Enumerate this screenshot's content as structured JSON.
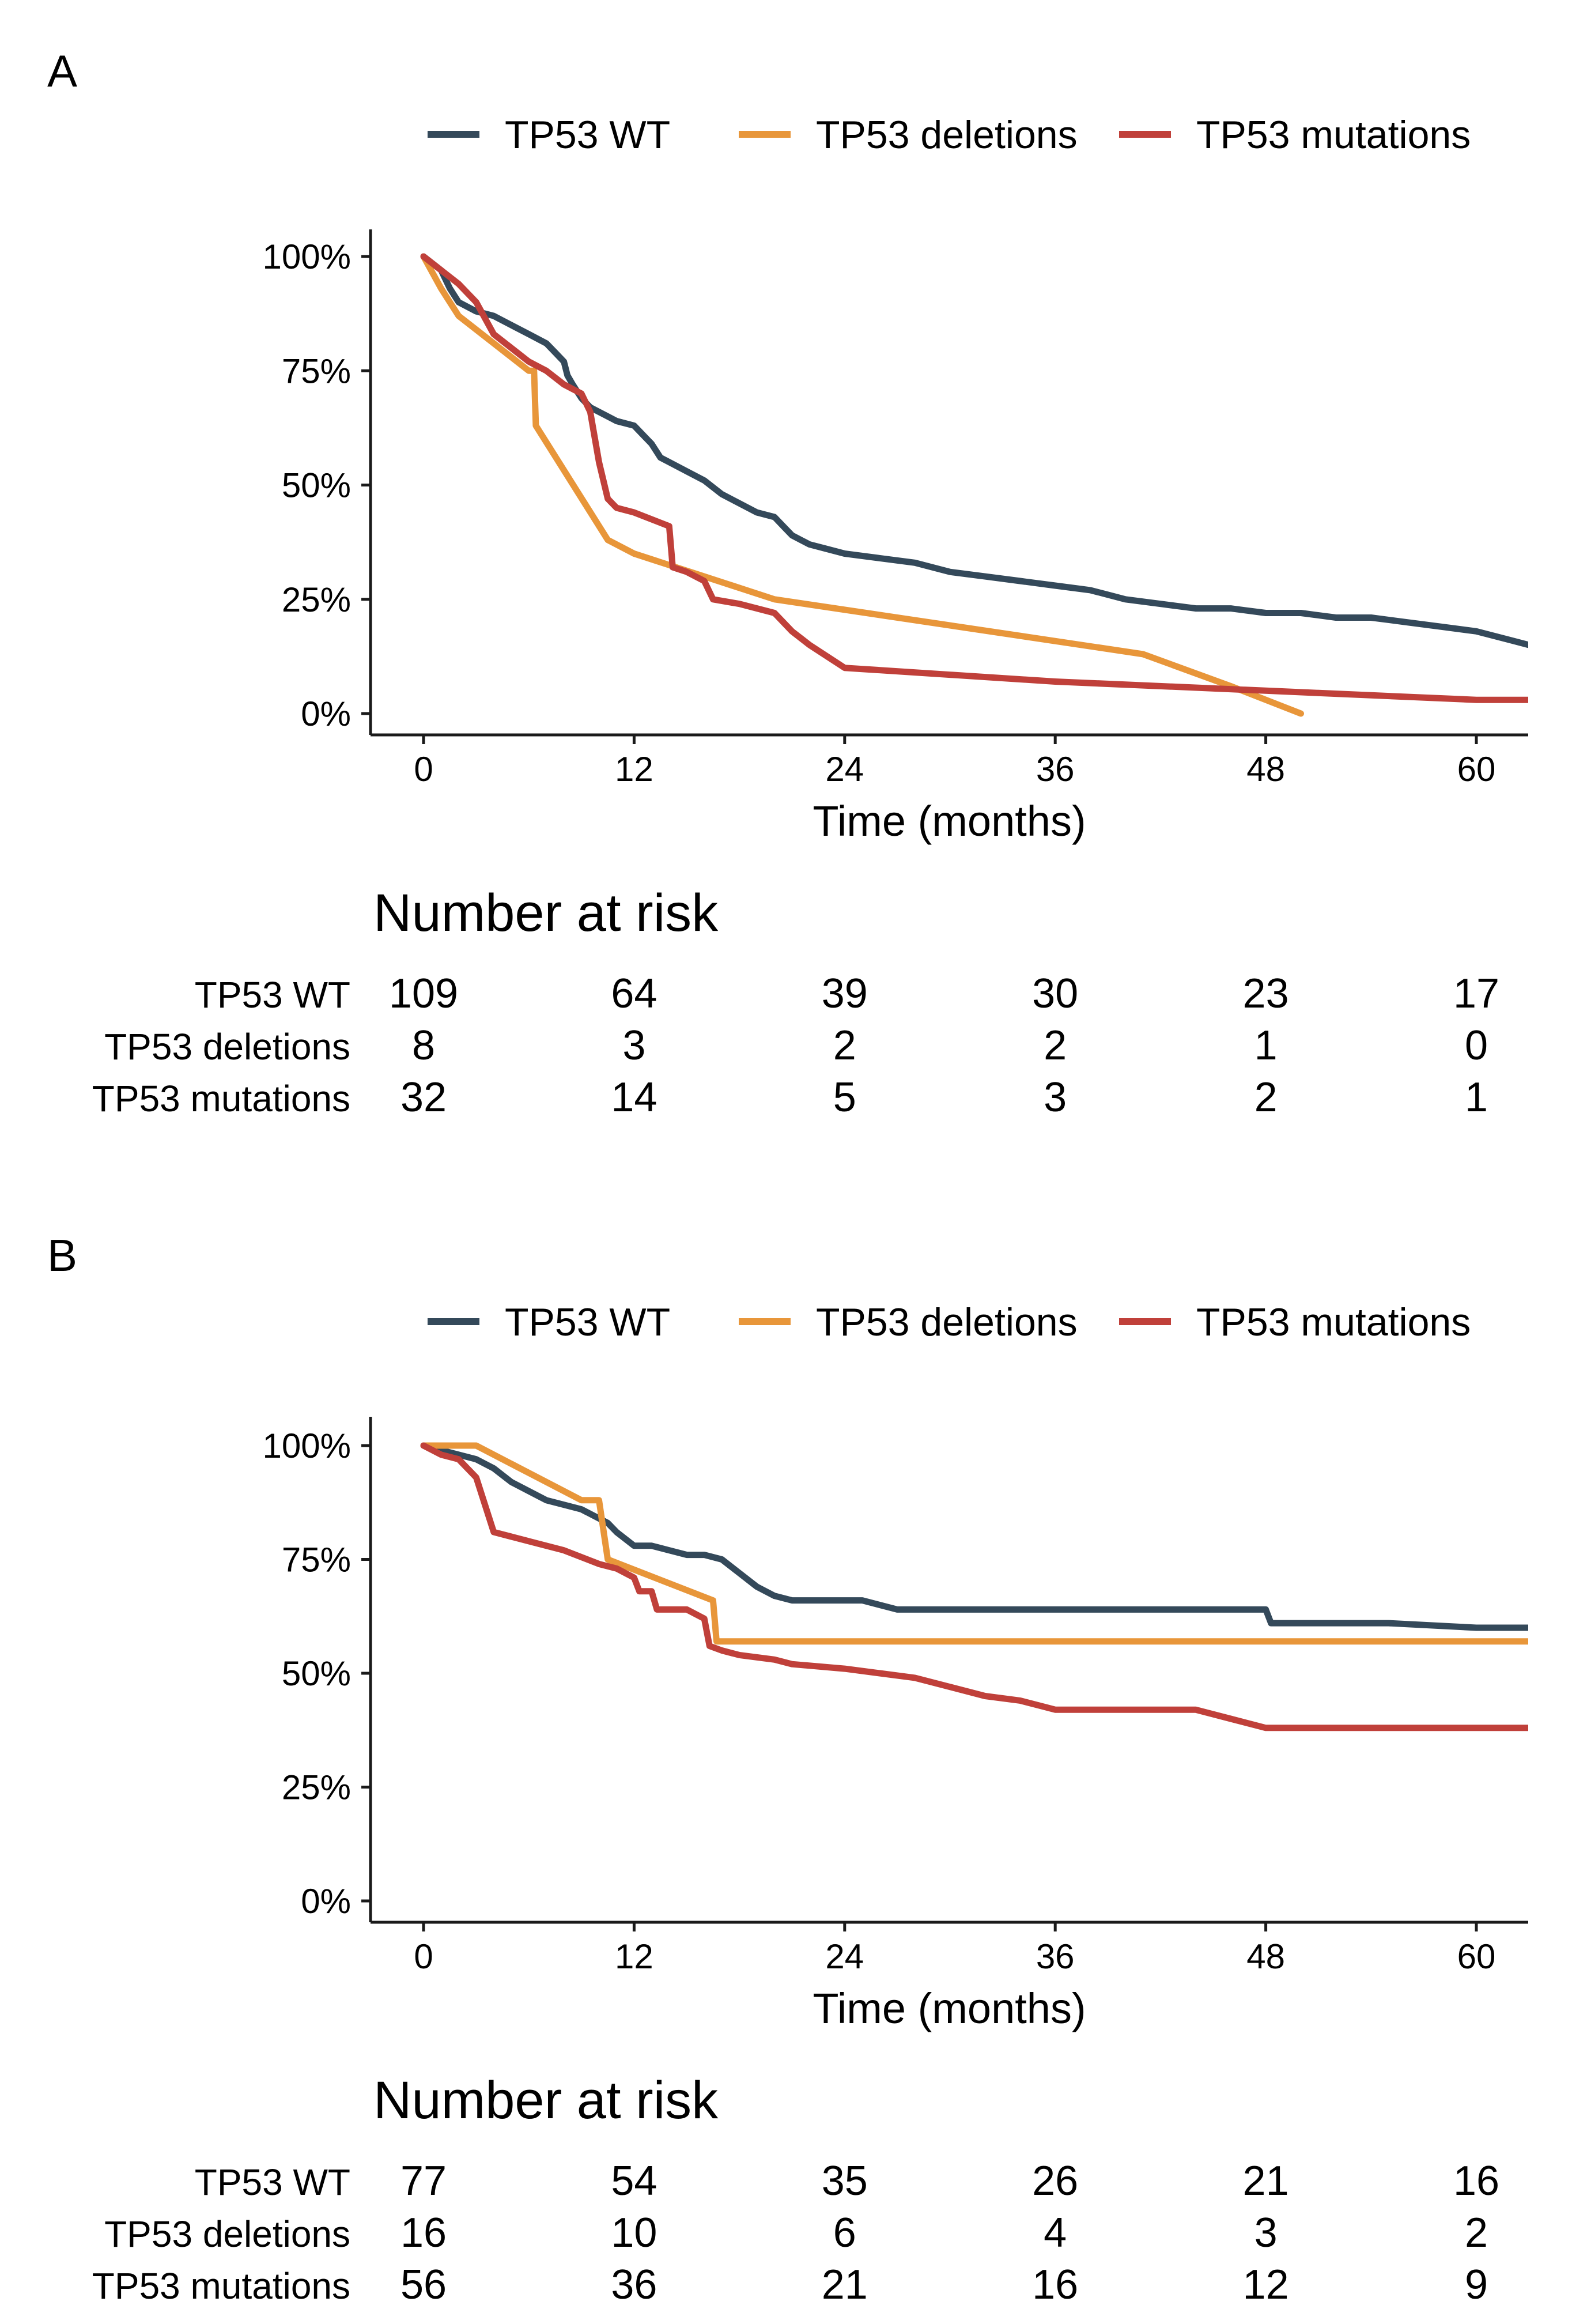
{
  "chart_data": [
    {
      "panel": "A",
      "type": "line",
      "subtype": "kaplan-meier",
      "xlabel": "Time (months)",
      "ylabel": "",
      "xlim": [
        0,
        63
      ],
      "ylim": [
        0,
        100
      ],
      "xticks": [
        0,
        12,
        24,
        36,
        48,
        60
      ],
      "yticks": [
        0,
        25,
        50,
        75,
        100
      ],
      "ytick_labels": [
        "0%",
        "25%",
        "50%",
        "75%",
        "100%"
      ],
      "legend": [
        "TP53 WT",
        "TP53 deletions",
        "TP53 mutations"
      ],
      "legend_position": "top-right",
      "series": [
        {
          "name": "TP53 WT",
          "color": "#34495a",
          "x": [
            0,
            1,
            1.5,
            2,
            3,
            4,
            5,
            6,
            7,
            7.5,
            8,
            8.2,
            8.5,
            9,
            9.5,
            10,
            10.5,
            11,
            12,
            12.5,
            13,
            13.5,
            14,
            15,
            16,
            17,
            18,
            19,
            20,
            20.5,
            21,
            21.5,
            22,
            23,
            24,
            26,
            28,
            30,
            32,
            34,
            36,
            38,
            39,
            40,
            42,
            44,
            46,
            48,
            50,
            52,
            54,
            56,
            58,
            60,
            62,
            63
          ],
          "y": [
            100,
            97,
            93,
            90,
            88,
            87,
            85,
            83,
            81,
            79,
            77,
            74,
            72,
            69,
            67,
            66,
            65,
            64,
            63,
            61,
            59,
            56,
            55,
            53,
            51,
            48,
            46,
            44,
            43,
            41,
            39,
            38,
            37,
            36,
            35,
            34,
            33,
            31,
            30,
            29,
            28,
            27,
            26,
            25,
            24,
            23,
            23,
            22,
            22,
            21,
            21,
            20,
            19,
            18,
            16,
            15
          ]
        },
        {
          "name": "TP53 deletions",
          "color": "#e8963a",
          "x": [
            0,
            1,
            2,
            6,
            6.3,
            6.4,
            10.5,
            12,
            20,
            41,
            46,
            50
          ],
          "y": [
            100,
            93,
            87,
            75,
            75,
            63,
            38,
            35,
            25,
            13,
            6,
            0
          ]
        },
        {
          "name": "TP53 mutations",
          "color": "#c0403a",
          "x": [
            0,
            1,
            2,
            3,
            4,
            6,
            7,
            8,
            9,
            9.5,
            10,
            10.5,
            11,
            12,
            14,
            14.2,
            15,
            16,
            16.5,
            18,
            20,
            21,
            22,
            24,
            36,
            48,
            60,
            63
          ],
          "y": [
            100,
            97,
            94,
            90,
            83,
            77,
            75,
            72,
            70,
            66,
            55,
            47,
            45,
            44,
            41,
            32,
            31,
            29,
            25,
            24,
            22,
            18,
            15,
            10,
            7,
            5,
            3,
            3
          ]
        }
      ],
      "risk_table": {
        "title": "Number at risk",
        "times": [
          0,
          12,
          24,
          36,
          48,
          60
        ],
        "rows": [
          {
            "label": "TP53 WT",
            "values": [
              109,
              64,
              39,
              30,
              23,
              17
            ]
          },
          {
            "label": "TP53 deletions",
            "values": [
              8,
              3,
              2,
              2,
              1,
              0
            ]
          },
          {
            "label": "TP53 mutations",
            "values": [
              32,
              14,
              5,
              3,
              2,
              1
            ]
          }
        ]
      }
    },
    {
      "panel": "B",
      "type": "line",
      "subtype": "kaplan-meier",
      "xlabel": "Time (months)",
      "ylabel": "",
      "xlim": [
        0,
        63
      ],
      "ylim": [
        0,
        100
      ],
      "xticks": [
        0,
        12,
        24,
        36,
        48,
        60
      ],
      "yticks": [
        0,
        25,
        50,
        75,
        100
      ],
      "ytick_labels": [
        "0%",
        "25%",
        "50%",
        "75%",
        "100%"
      ],
      "legend": [
        "TP53 WT",
        "TP53 deletions",
        "TP53 mutations"
      ],
      "legend_position": "top-right",
      "series": [
        {
          "name": "TP53 WT",
          "color": "#34495a",
          "x": [
            0,
            2,
            3,
            4,
            5,
            6,
            7,
            8,
            9,
            10,
            10.5,
            11,
            12,
            13,
            14,
            15,
            16,
            17,
            18,
            19,
            20,
            21,
            23,
            25,
            27,
            30,
            36,
            42,
            48,
            48.3,
            55,
            60,
            63
          ],
          "y": [
            100,
            98,
            97,
            95,
            92,
            90,
            88,
            87,
            86,
            84,
            83,
            81,
            78,
            78,
            77,
            76,
            76,
            75,
            72,
            69,
            67,
            66,
            66,
            66,
            64,
            64,
            64,
            64,
            64,
            61,
            61,
            60,
            60
          ]
        },
        {
          "name": "TP53 deletions",
          "color": "#e8963a",
          "x": [
            0,
            3,
            6,
            9,
            10,
            10.5,
            16.5,
            16.7,
            40,
            63
          ],
          "y": [
            100,
            100,
            94,
            88,
            88,
            75,
            66,
            57,
            57,
            57
          ]
        },
        {
          "name": "TP53 mutations",
          "color": "#c0403a",
          "x": [
            0,
            1,
            2,
            3,
            3.5,
            4,
            5,
            6,
            8,
            10,
            11,
            12,
            12.3,
            13,
            13.3,
            15,
            16,
            16.3,
            17,
            18,
            20,
            21,
            24,
            26,
            28,
            30,
            32,
            34,
            35,
            36,
            40,
            42,
            44,
            46,
            48,
            60,
            63
          ],
          "y": [
            100,
            98,
            97,
            93,
            87,
            81,
            80,
            79,
            77,
            74,
            73,
            71,
            68,
            68,
            64,
            64,
            62,
            56,
            55,
            54,
            53,
            52,
            51,
            50,
            49,
            47,
            45,
            44,
            43,
            42,
            42,
            42,
            42,
            40,
            38,
            38,
            38
          ]
        }
      ],
      "risk_table": {
        "title": "Number at risk",
        "times": [
          0,
          12,
          24,
          36,
          48,
          60
        ],
        "rows": [
          {
            "label": "TP53 WT",
            "values": [
              77,
              54,
              35,
              26,
              21,
              16
            ]
          },
          {
            "label": "TP53 deletions",
            "values": [
              16,
              10,
              6,
              4,
              3,
              2
            ]
          },
          {
            "label": "TP53 mutations",
            "values": [
              56,
              36,
              21,
              16,
              12,
              9
            ]
          }
        ]
      }
    }
  ]
}
